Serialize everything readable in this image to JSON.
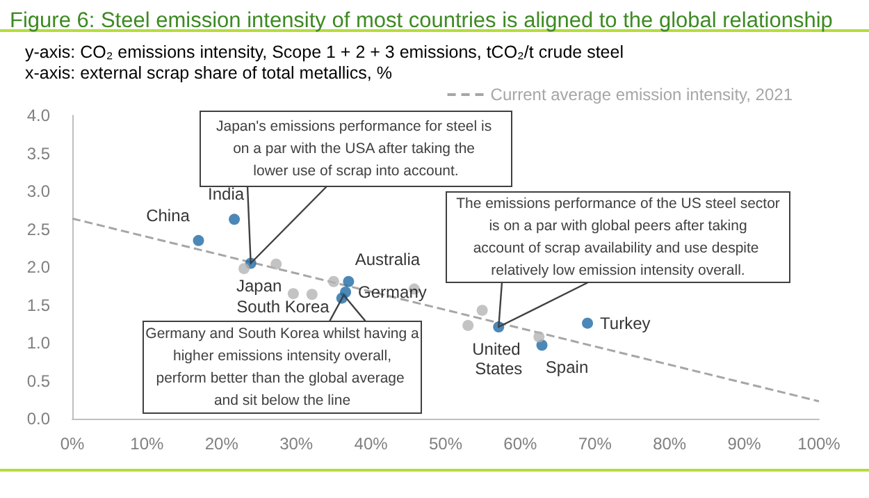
{
  "chart_data": {
    "type": "scatter",
    "title": "Figure 6: Steel emission intensity of most countries is aligned to the global relationship",
    "ylabel": "y-axis: CO₂ emissions intensity, Scope 1 + 2 + 3 emissions, tCO₂/t crude steel",
    "xlabel": "x-axis: external scrap share of total metallics, %",
    "series": [
      {
        "type": "scatter",
        "color": "#1f6aa5",
        "marker": "circle",
        "x": [
          16.9,
          21.7,
          23.9,
          37.0,
          36.6,
          36.1,
          57.1,
          62.9,
          69.0
        ],
        "values": [
          2.35,
          2.63,
          2.05,
          1.81,
          1.67,
          1.59,
          1.21,
          0.97,
          1.26
        ],
        "value_labels": [
          "China",
          "India",
          "Japan",
          "Australia",
          "Germany",
          "South Korea",
          "United States",
          "Spain",
          "Turkey"
        ]
      },
      {
        "type": "scatter",
        "color": "#b4b4b4",
        "marker": "circle",
        "x": [
          23.0,
          27.3,
          29.6,
          32.1,
          35.0,
          45.8,
          53.0,
          54.9,
          62.5
        ],
        "values": [
          1.98,
          2.04,
          1.65,
          1.64,
          1.81,
          1.71,
          1.23,
          1.43,
          1.08
        ]
      },
      {
        "type": "line",
        "name": "Current average emission intensity, 2021",
        "color": "#a6a6a6",
        "marker": "none",
        "line_style": "dashed",
        "x": [
          0,
          100
        ],
        "values": [
          2.64,
          0.23
        ]
      }
    ],
    "xlim": [
      0,
      100
    ],
    "xticks": [
      {
        "value": 0,
        "label": "0%"
      },
      {
        "value": 10,
        "label": "10%"
      },
      {
        "value": 20,
        "label": "20%"
      },
      {
        "value": 30,
        "label": "30%"
      },
      {
        "value": 40,
        "label": "40%"
      },
      {
        "value": 50,
        "label": "50%"
      },
      {
        "value": 60,
        "label": "60%"
      },
      {
        "value": 70,
        "label": "70%"
      },
      {
        "value": 80,
        "label": "80%"
      },
      {
        "value": 90,
        "label": "90%"
      },
      {
        "value": 100,
        "label": "100%"
      }
    ],
    "ylim": [
      0,
      4
    ],
    "yticks": [
      {
        "value": 0,
        "label": "0.0"
      },
      {
        "value": 0.5,
        "label": "0.5"
      },
      {
        "value": 1,
        "label": "1.0"
      },
      {
        "value": 1.5,
        "label": "1.5"
      },
      {
        "value": 2,
        "label": "2.0"
      },
      {
        "value": 2.5,
        "label": "2.5"
      },
      {
        "value": 3,
        "label": "3.0"
      },
      {
        "value": 3.5,
        "label": "3.5"
      },
      {
        "value": 4,
        "label": "4.0"
      }
    ],
    "grid": false,
    "legend": "top right",
    "annotations": [
      "Japan's emissions performance for steel is on a par with the USA after taking the lower use of scrap into account.",
      "Germany and South Korea whilst having a higher emissions intensity overall, perform better than the global average and sit below the line",
      "The emissions performance of the US steel sector is on a par with global peers after taking account of scrap availability and use despite relatively low emission intensity overall."
    ]
  }
}
